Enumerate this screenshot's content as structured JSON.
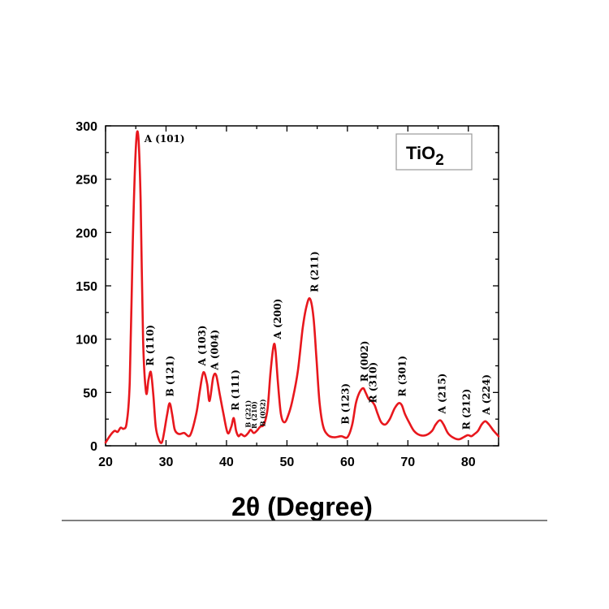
{
  "chart_data": {
    "type": "line",
    "xlabel": "2θ (Degree)",
    "ylabel": "",
    "xlim": [
      20,
      85
    ],
    "ylim": [
      0,
      300
    ],
    "x_ticks": [
      "20",
      "30",
      "40",
      "50",
      "60",
      "70",
      "80"
    ],
    "y_ticks": [
      "0",
      "50",
      "100",
      "150",
      "200",
      "250",
      "300"
    ],
    "grid": false,
    "line_color": "#e8171d",
    "legend": {
      "label_main": "TiO",
      "label_sub": "2",
      "placement": "top-right"
    },
    "series": [
      {
        "x": [
          20,
          20.8,
          21.5,
          22,
          22.5,
          23,
          23.5,
          24,
          24.5,
          25,
          25.4,
          25.8,
          26.2,
          26.7,
          27.1,
          27.5,
          27.9,
          28.3,
          28.8,
          29.3,
          29.7,
          30.2,
          30.6,
          31,
          31.4,
          31.8,
          32.3,
          33,
          34,
          35,
          35.6,
          36.2,
          36.8,
          37.2,
          37.8,
          38.3,
          38.9,
          39.5,
          40.2,
          40.8,
          41.2,
          41.6,
          42,
          42.4,
          43,
          43.6,
          44,
          44.5,
          45,
          45.6,
          46.2,
          46.8,
          47.3,
          47.8,
          48.1,
          48.5,
          49,
          49.6,
          50.3,
          51,
          51.8,
          52.6,
          53.2,
          53.8,
          54.4,
          54.9,
          55.4,
          56,
          56.8,
          57.8,
          59,
          60,
          60.8,
          61.4,
          62,
          62.6,
          63,
          63.5,
          64,
          64.5,
          65,
          65.6,
          66.3,
          67,
          67.8,
          68.5,
          69,
          69.5,
          70.2,
          71,
          72,
          73,
          74,
          74.6,
          75.3,
          75.9,
          76.6,
          77.4,
          78.4,
          79.2,
          79.9,
          80.5,
          81,
          81.6,
          82.2,
          82.8,
          83.4,
          84.2,
          85
        ],
        "y": [
          3,
          10,
          14,
          13,
          17,
          16,
          22,
          60,
          190,
          278,
          291,
          230,
          100,
          50,
          62,
          69,
          48,
          18,
          6,
          3,
          13,
          30,
          40,
          30,
          16,
          12,
          11,
          12,
          10,
          30,
          52,
          69,
          58,
          42,
          64,
          66,
          48,
          30,
          12,
          18,
          26,
          14,
          9,
          11,
          9,
          12,
          15,
          12,
          14,
          18,
          20,
          35,
          70,
          94,
          90,
          60,
          30,
          22,
          30,
          45,
          70,
          110,
          130,
          138,
          120,
          80,
          40,
          18,
          10,
          8,
          9,
          8,
          20,
          40,
          50,
          54,
          50,
          44,
          42,
          38,
          30,
          22,
          20,
          25,
          35,
          40,
          38,
          30,
          22,
          14,
          10,
          10,
          14,
          20,
          24,
          20,
          12,
          8,
          6,
          8,
          10,
          9,
          11,
          14,
          20,
          23,
          20,
          14,
          9
        ]
      }
    ],
    "annotations": [
      {
        "text": "A (101)",
        "x": 25.6,
        "y": 291,
        "rot": 0
      },
      {
        "text": "R (110)",
        "x": 27.9,
        "y": 72,
        "rot": -90
      },
      {
        "text": "B (121)",
        "x": 31.2,
        "y": 43,
        "rot": -90
      },
      {
        "text": "A (103)",
        "x": 36.5,
        "y": 72,
        "rot": -90
      },
      {
        "text": "A (004)",
        "x": 38.6,
        "y": 68,
        "rot": -90
      },
      {
        "text": "R (111)",
        "x": 42.0,
        "y": 30,
        "rot": -90
      },
      {
        "text": "B (221)",
        "x": 44.0,
        "y": 14,
        "rot": -90,
        "small": true
      },
      {
        "text": "R (210)",
        "x": 45.0,
        "y": 13,
        "rot": -90,
        "small": true
      },
      {
        "text": "B (032)",
        "x": 46.4,
        "y": 15,
        "rot": -90,
        "small": true
      },
      {
        "text": "A (200)",
        "x": 49.0,
        "y": 97,
        "rot": -90
      },
      {
        "text": "R (211)",
        "x": 55.1,
        "y": 141,
        "rot": -90
      },
      {
        "text": "B (123)",
        "x": 60.2,
        "y": 17,
        "rot": -90
      },
      {
        "text": "R (002)",
        "x": 63.4,
        "y": 57,
        "rot": -90
      },
      {
        "text": "R (310)",
        "x": 64.8,
        "y": 37,
        "rot": -90
      },
      {
        "text": "R (301)",
        "x": 69.6,
        "y": 43,
        "rot": -90
      },
      {
        "text": "A (215)",
        "x": 76.2,
        "y": 27,
        "rot": -90
      },
      {
        "text": "R (212)",
        "x": 80.2,
        "y": 12,
        "rot": -90
      },
      {
        "text": "A (224)",
        "x": 83.5,
        "y": 26,
        "rot": -90
      }
    ]
  }
}
